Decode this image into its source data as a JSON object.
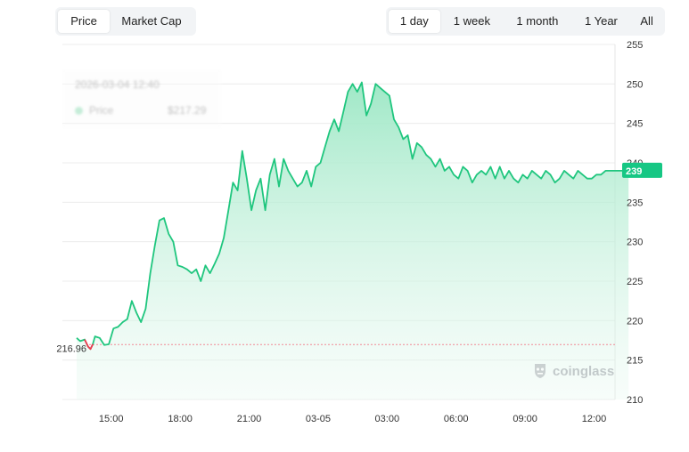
{
  "range_tabs": {
    "metric": [
      {
        "label": "Price",
        "active": true
      },
      {
        "label": "Market Cap",
        "active": false
      }
    ],
    "period": [
      {
        "label": "1 day",
        "active": true
      },
      {
        "label": "1 week",
        "active": false
      },
      {
        "label": "1 month",
        "active": false
      },
      {
        "label": "1 Year",
        "active": false
      },
      {
        "label": "All",
        "active": false
      }
    ]
  },
  "tooltip": {
    "date": "2026-03-04 12:40",
    "label": "Price",
    "value": "$217.29"
  },
  "watermark": "coinglass",
  "colors": {
    "line": "#1fc67e",
    "area_top": "#9be7c4",
    "negative": "#f0384e",
    "badge": "#16c784",
    "baseline": "#f08a96"
  },
  "chart_data": {
    "type": "area",
    "x_ticks": [
      "15:00",
      "18:00",
      "21:00",
      "03-05",
      "03:00",
      "06:00",
      "09:00",
      "12:00"
    ],
    "y_ticks": [
      210,
      215,
      220,
      225,
      230,
      235,
      240,
      245,
      250,
      255
    ],
    "ylim": [
      210,
      255
    ],
    "start_price": 216.96,
    "start_label": "216.96",
    "last_price": 239,
    "last_label": "239",
    "x_hours": [
      0,
      0.15,
      0.35,
      0.5,
      0.6,
      0.7,
      0.8,
      1.0,
      1.2,
      1.4,
      1.6,
      1.8,
      2.0,
      2.2,
      2.4,
      2.6,
      2.8,
      3.0,
      3.2,
      3.4,
      3.6,
      3.8,
      4.0,
      4.2,
      4.4,
      4.6,
      4.8,
      5.0,
      5.2,
      5.4,
      5.6,
      5.8,
      6.0,
      6.2,
      6.4,
      6.6,
      6.8,
      7.0,
      7.2,
      7.4,
      7.6,
      7.8,
      8.0,
      8.2,
      8.4,
      8.6,
      8.8,
      9.0,
      9.2,
      9.4,
      9.6,
      9.8,
      10.0,
      10.2,
      10.4,
      10.6,
      10.8,
      11.0,
      11.2,
      11.4,
      11.6,
      11.8,
      12.0,
      12.2,
      12.4,
      12.6,
      12.8,
      13.0,
      13.2,
      13.4,
      13.6,
      13.8,
      14.0,
      14.2,
      14.4,
      14.6,
      14.8,
      15.0,
      15.2,
      15.4,
      15.6,
      15.8,
      16.0,
      16.2,
      16.4,
      16.6,
      16.8,
      17.0,
      17.2,
      17.4,
      17.6,
      17.8,
      18.0,
      18.2,
      18.4,
      18.6,
      18.8,
      19.0,
      19.2,
      19.4,
      19.6,
      19.8,
      20.0,
      20.2,
      20.4,
      20.6,
      20.8,
      21.0,
      21.2,
      21.4,
      21.6,
      21.8,
      22.0,
      22.2,
      22.4,
      22.6,
      22.8,
      23.0,
      23.2,
      23.4,
      23.6,
      23.8,
      24.0
    ],
    "y_values": [
      217.8,
      217.4,
      217.6,
      216.7,
      216.4,
      217.0,
      218.0,
      217.8,
      216.9,
      217.0,
      219.0,
      219.2,
      219.8,
      220.2,
      222.5,
      221.0,
      219.8,
      221.5,
      226.0,
      229.5,
      232.7,
      233.0,
      231.0,
      230.0,
      227.0,
      226.8,
      226.5,
      226.0,
      226.5,
      225.0,
      227.0,
      226.0,
      227.2,
      228.5,
      230.5,
      234.0,
      237.5,
      236.5,
      241.5,
      238.0,
      234.0,
      236.5,
      238.0,
      234.0,
      238.5,
      240.5,
      237.0,
      240.5,
      239.0,
      238.0,
      237.0,
      237.5,
      239.0,
      237.0,
      239.5,
      240.0,
      242.0,
      244.0,
      245.5,
      244.0,
      246.5,
      249.0,
      250.0,
      249.0,
      250.2,
      246.0,
      247.5,
      250.0,
      249.5,
      249.0,
      248.5,
      245.5,
      244.5,
      243.0,
      243.5,
      240.5,
      242.5,
      242.0,
      241.0,
      240.5,
      239.5,
      240.5,
      239.0,
      239.5,
      238.5,
      238.0,
      239.5,
      239.0,
      237.5,
      238.5,
      239.0,
      238.5,
      239.5,
      238.0,
      239.5,
      238.0,
      239.0,
      238.0,
      237.5,
      238.5,
      238.0,
      239.0,
      238.5,
      238.0,
      239.0,
      238.5,
      237.5,
      238.0,
      239.0,
      238.5,
      238.0,
      239.0,
      238.5,
      238.0,
      238.0,
      238.5,
      238.5,
      239.0,
      239.0,
      239.0,
      239.0,
      239.0,
      239.0
    ],
    "grid": true,
    "legend": "none"
  }
}
